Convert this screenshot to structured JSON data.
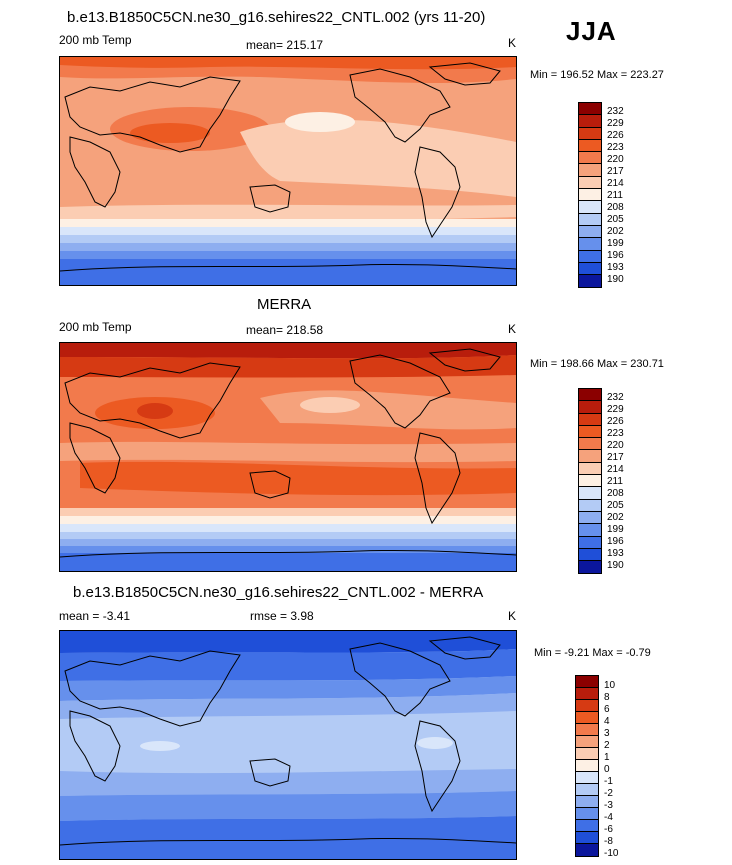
{
  "season": "JJA",
  "panels": [
    {
      "title": "b.e13.B1850C5CN.ne30_g16.sehires22_CNTL.002 (yrs 11-20)",
      "left_label": "200 mb Temp",
      "center_label": "mean= 215.17",
      "units": "K",
      "minmax": "Min = 196.52 Max = 223.27"
    },
    {
      "title": "MERRA",
      "left_label": "200 mb Temp",
      "center_label": "mean= 218.58",
      "units": "K",
      "minmax": "Min = 198.66 Max = 230.71"
    },
    {
      "title": "b.e13.B1850C5CN.ne30_g16.sehires22_CNTL.002 - MERRA",
      "left_label": "mean =  -3.41",
      "center_label": "rmse =   3.98",
      "units": "K",
      "minmax": "Min =  -9.21 Max =  -0.79"
    }
  ],
  "chart_data": [
    {
      "type": "heatmap",
      "title": "b.e13.B1850C5CN.ne30_g16.sehires22_CNTL.002 (yrs 11-20)",
      "variable": "200 mb Temp",
      "units": "K",
      "mean": 215.17,
      "min": 196.52,
      "max": 223.27,
      "colorbar_levels": [
        232,
        229,
        226,
        223,
        220,
        217,
        214,
        211,
        208,
        205,
        202,
        199,
        196,
        193,
        190
      ],
      "colorbar_colors": [
        "#8b0000",
        "#b81d0c",
        "#d63a13",
        "#ec5a22",
        "#f27a4c",
        "#f5a27c",
        "#fbcdb3",
        "#fdf0e4",
        "#d9e6fa",
        "#b3cbf5",
        "#8eaef0",
        "#6690ec",
        "#3f6fe6",
        "#1f4fd8",
        "#0b169c"
      ]
    },
    {
      "type": "heatmap",
      "title": "MERRA",
      "variable": "200 mb Temp",
      "units": "K",
      "mean": 218.58,
      "min": 198.66,
      "max": 230.71,
      "colorbar_levels": [
        232,
        229,
        226,
        223,
        220,
        217,
        214,
        211,
        208,
        205,
        202,
        199,
        196,
        193,
        190
      ],
      "colorbar_colors": [
        "#8b0000",
        "#b81d0c",
        "#d63a13",
        "#ec5a22",
        "#f27a4c",
        "#f5a27c",
        "#fbcdb3",
        "#fdf0e4",
        "#d9e6fa",
        "#b3cbf5",
        "#8eaef0",
        "#6690ec",
        "#3f6fe6",
        "#1f4fd8",
        "#0b169c"
      ]
    },
    {
      "type": "heatmap",
      "title": "b.e13.B1850C5CN.ne30_g16.sehires22_CNTL.002 - MERRA",
      "units": "K",
      "mean": -3.41,
      "rmse": 3.98,
      "min": -9.21,
      "max": -0.79,
      "colorbar_levels": [
        10,
        8,
        6,
        4,
        3,
        2,
        1,
        0,
        -1,
        -2,
        -3,
        -4,
        -6,
        -8,
        -10
      ],
      "colorbar_colors": [
        "#8b0000",
        "#b81d0c",
        "#d63a13",
        "#ec5a22",
        "#f27a4c",
        "#f5a27c",
        "#fbcdb3",
        "#fdf0e4",
        "#d9e6fa",
        "#b3cbf5",
        "#8eaef0",
        "#6690ec",
        "#3f6fe6",
        "#1f4fd8",
        "#0b169c"
      ]
    }
  ],
  "colors": {
    "map_default": "#f5a27c"
  }
}
